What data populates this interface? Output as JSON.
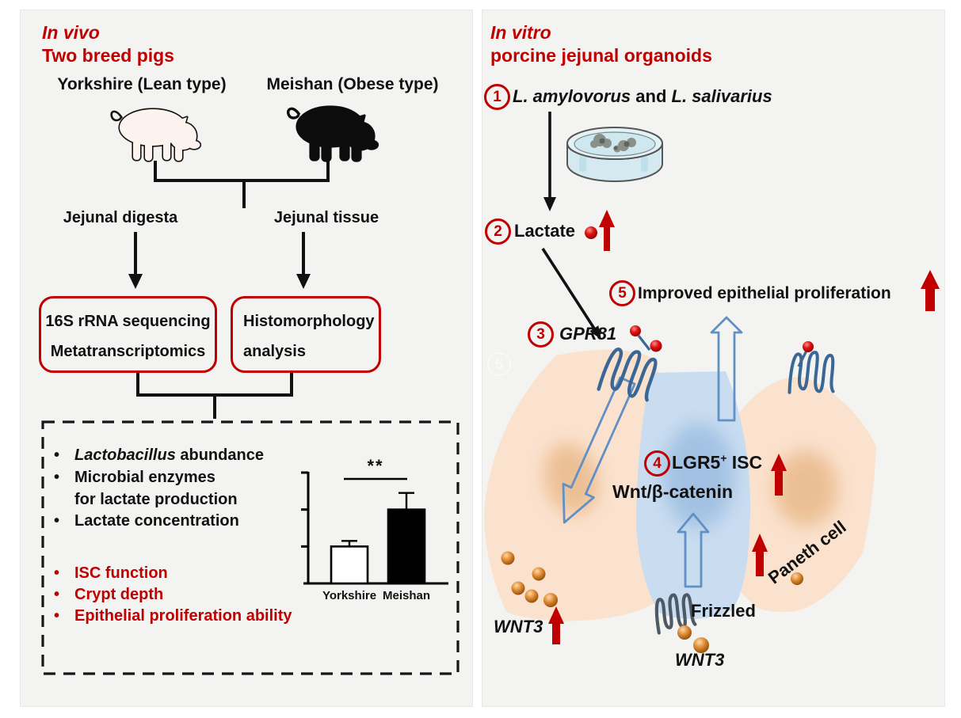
{
  "colors": {
    "accent_red": "#c00000",
    "panel_bg": "#f3f3f1",
    "receptor_blue": "#3a6795",
    "hollow_arrow_blue": "#6090c4",
    "cell_peach": "#fbe2ce",
    "cell_nucleus_peach": "#eaba8c",
    "cell_blue": "#c9dcf0",
    "cell_nucleus_blue": "#9fc0e2",
    "sphere_orange": "#c97a2a",
    "frizzled_gray": "#4d5a66"
  },
  "left_panel": {
    "title_line1": "In vivo",
    "title_line2": "Two breed pigs",
    "breeds": [
      {
        "label": "Yorkshire (Lean type)"
      },
      {
        "label": "Meishan (Obese type)"
      }
    ],
    "samples": [
      {
        "label": "Jejunal digesta"
      },
      {
        "label": "Jejunal tissue"
      }
    ],
    "method_boxes": [
      {
        "line1": "16S rRNA sequencing",
        "line2": "Metatranscriptomics"
      },
      {
        "line1": "Histomorphology",
        "line2": "analysis"
      }
    ],
    "findings_black": {
      "item1_italic": "Lactobacillus",
      "item1_rest": " abundance",
      "item2_line1": "Microbial enzymes",
      "item2_line2": "for lactate production",
      "item3": "Lactate concentration"
    },
    "findings_red": [
      "ISC function",
      "Crypt depth",
      "Epithelial proliferation ability"
    ],
    "bullet_char": "•"
  },
  "chart_data": {
    "type": "bar",
    "categories": [
      "Yorkshire",
      "Meishan"
    ],
    "values": [
      1.0,
      2.0
    ],
    "errors": [
      0.15,
      0.45
    ],
    "significance": "**",
    "title": "",
    "xlabel": "",
    "ylabel": "",
    "ylim": [
      0,
      3
    ],
    "yticks_shown_unlabeled": [
      1,
      2,
      3
    ],
    "bar_colors": [
      "#ffffff",
      "#000000"
    ],
    "note": "y-axis ticks are unlabeled in the source figure"
  },
  "right_panel": {
    "title_line1": "In vitro",
    "title_line2": "porcine jejunal organoids",
    "steps": [
      {
        "num": "1",
        "species1": "L. amylovorus",
        "conjunction": " and ",
        "species2": "L. salivarius"
      },
      {
        "num": "2",
        "label": "Lactate"
      },
      {
        "num": "3",
        "label": "GPR81"
      },
      {
        "num": "4",
        "label_gene": "LGR5",
        "label_sup": "+",
        "label_rest": " ISC",
        "label_line2": "Wnt/β-catenin"
      },
      {
        "num": "5",
        "label": "Improved epithelial proliferation"
      }
    ],
    "labels": {
      "wnt3_left": "WNT3",
      "wnt3_bottom": "WNT3",
      "frizzled": "Frizzled",
      "paneth": "Paneth cell"
    },
    "watermark_num": "5"
  }
}
